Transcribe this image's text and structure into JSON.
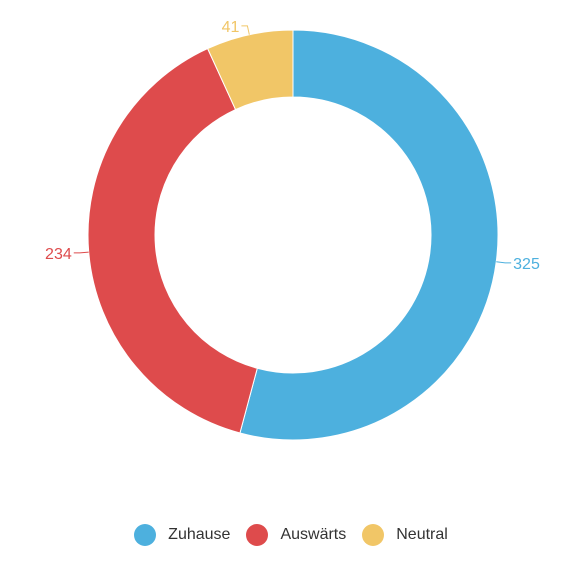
{
  "chart_data": {
    "type": "pie",
    "variant": "donut",
    "categories": [
      "Zuhause",
      "Auswärts",
      "Neutral"
    ],
    "values": [
      325,
      234,
      41
    ],
    "colors": [
      "#4DB0DE",
      "#DE4B4C",
      "#F1C667"
    ],
    "data_labels": [
      "325",
      "234",
      "41"
    ],
    "legend_position": "bottom",
    "title": ""
  }
}
